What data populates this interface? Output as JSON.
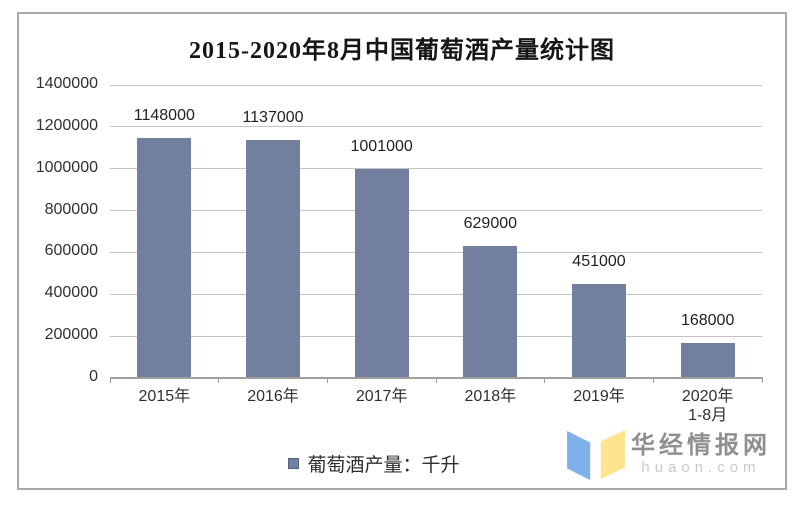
{
  "chart": {
    "border_color": "#a8a8a8",
    "background": "#ffffff"
  },
  "chart_data": {
    "type": "bar",
    "title": "2015-2020年8月中国葡萄酒产量统计图",
    "categories": [
      "2015年",
      "2016年",
      "2017年",
      "2018年",
      "2019年",
      "2020年"
    ],
    "category_sublabels": [
      "",
      "",
      "",
      "",
      "",
      "1-8月"
    ],
    "values": [
      1148000,
      1137000,
      1001000,
      629000,
      451000,
      168000
    ],
    "value_labels": [
      "1148000",
      "1137000",
      "1001000",
      "629000",
      "451000",
      "168000"
    ],
    "ylim": [
      0,
      1400000
    ],
    "ytick_step": 200000,
    "ytick_labels": [
      "0",
      "200000",
      "400000",
      "600000",
      "800000",
      "1000000",
      "1200000",
      "1400000"
    ],
    "grid": true,
    "legend_label": "葡萄酒产量：千升",
    "legend_position": "bottom",
    "bar_color": "#737f9f",
    "gridline_color": "#c2c2c2",
    "axis_color": "#a0a0a0",
    "label_color": "#303030",
    "value_label_color": "#1f1f1f"
  },
  "watermark": {
    "site_name": "华经情报网",
    "site_domain": "huaon.com",
    "name_color": "#8f8f8f",
    "domain_color": "#c9c9c9",
    "logo_blue": "#7fb2ea",
    "logo_yellow": "#ffe48e"
  }
}
